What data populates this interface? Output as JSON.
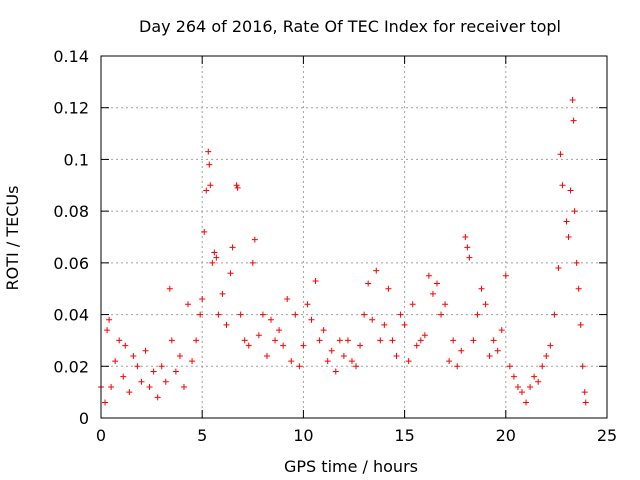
{
  "chart_data": {
    "type": "scatter",
    "title": "Day 264 of 2016, Rate Of TEC Index for receiver topl",
    "xlabel": "GPS time / hours",
    "ylabel": "ROTI / TECUs",
    "xlim": [
      0,
      25
    ],
    "ylim": [
      0,
      0.14
    ],
    "x_ticks": [
      0,
      5,
      10,
      15,
      20,
      25
    ],
    "x_tick_labels": [
      "0",
      "5",
      "10",
      "15",
      "20",
      "25"
    ],
    "y_ticks": [
      0,
      0.02,
      0.04,
      0.06,
      0.08,
      0.1,
      0.12,
      0.14
    ],
    "y_tick_labels": [
      "0",
      "0.02",
      "0.04",
      "0.06",
      "0.08",
      "0.1",
      "0.12",
      "0.14"
    ],
    "grid": true,
    "marker": "+",
    "series_color": "#ff0000",
    "series": [
      {
        "name": "ROTI",
        "points": [
          [
            0.0,
            0.012
          ],
          [
            0.2,
            0.006
          ],
          [
            0.3,
            0.034
          ],
          [
            0.4,
            0.038
          ],
          [
            0.5,
            0.012
          ],
          [
            0.7,
            0.022
          ],
          [
            0.9,
            0.03
          ],
          [
            1.1,
            0.016
          ],
          [
            1.2,
            0.028
          ],
          [
            1.4,
            0.01
          ],
          [
            1.6,
            0.024
          ],
          [
            1.8,
            0.02
          ],
          [
            2.0,
            0.014
          ],
          [
            2.2,
            0.026
          ],
          [
            2.4,
            0.012
          ],
          [
            2.6,
            0.018
          ],
          [
            2.8,
            0.008
          ],
          [
            3.0,
            0.02
          ],
          [
            3.2,
            0.014
          ],
          [
            3.4,
            0.05
          ],
          [
            3.5,
            0.03
          ],
          [
            3.7,
            0.018
          ],
          [
            3.9,
            0.024
          ],
          [
            4.1,
            0.012
          ],
          [
            4.3,
            0.044
          ],
          [
            4.5,
            0.022
          ],
          [
            4.7,
            0.03
          ],
          [
            4.9,
            0.04
          ],
          [
            5.0,
            0.046
          ],
          [
            5.1,
            0.072
          ],
          [
            5.2,
            0.088
          ],
          [
            5.3,
            0.103
          ],
          [
            5.35,
            0.098
          ],
          [
            5.4,
            0.09
          ],
          [
            5.5,
            0.06
          ],
          [
            5.6,
            0.064
          ],
          [
            5.7,
            0.062
          ],
          [
            5.8,
            0.04
          ],
          [
            6.0,
            0.048
          ],
          [
            6.2,
            0.036
          ],
          [
            6.4,
            0.056
          ],
          [
            6.5,
            0.066
          ],
          [
            6.7,
            0.09
          ],
          [
            6.75,
            0.089
          ],
          [
            6.9,
            0.04
          ],
          [
            7.1,
            0.03
          ],
          [
            7.3,
            0.028
          ],
          [
            7.5,
            0.06
          ],
          [
            7.6,
            0.069
          ],
          [
            7.8,
            0.032
          ],
          [
            8.0,
            0.04
          ],
          [
            8.2,
            0.024
          ],
          [
            8.4,
            0.038
          ],
          [
            8.6,
            0.03
          ],
          [
            8.8,
            0.034
          ],
          [
            9.0,
            0.028
          ],
          [
            9.2,
            0.046
          ],
          [
            9.4,
            0.022
          ],
          [
            9.6,
            0.04
          ],
          [
            9.8,
            0.02
          ],
          [
            10.0,
            0.028
          ],
          [
            10.2,
            0.044
          ],
          [
            10.4,
            0.038
          ],
          [
            10.6,
            0.053
          ],
          [
            10.8,
            0.03
          ],
          [
            11.0,
            0.034
          ],
          [
            11.2,
            0.022
          ],
          [
            11.4,
            0.026
          ],
          [
            11.6,
            0.018
          ],
          [
            11.8,
            0.03
          ],
          [
            12.0,
            0.024
          ],
          [
            12.2,
            0.03
          ],
          [
            12.4,
            0.022
          ],
          [
            12.6,
            0.02
          ],
          [
            12.8,
            0.028
          ],
          [
            13.0,
            0.04
          ],
          [
            13.2,
            0.052
          ],
          [
            13.4,
            0.038
          ],
          [
            13.6,
            0.057
          ],
          [
            13.8,
            0.03
          ],
          [
            14.0,
            0.036
          ],
          [
            14.2,
            0.05
          ],
          [
            14.4,
            0.03
          ],
          [
            14.6,
            0.024
          ],
          [
            14.8,
            0.04
          ],
          [
            15.0,
            0.036
          ],
          [
            15.2,
            0.022
          ],
          [
            15.4,
            0.044
          ],
          [
            15.6,
            0.028
          ],
          [
            15.8,
            0.03
          ],
          [
            16.0,
            0.032
          ],
          [
            16.2,
            0.055
          ],
          [
            16.4,
            0.048
          ],
          [
            16.6,
            0.052
          ],
          [
            16.8,
            0.04
          ],
          [
            17.0,
            0.044
          ],
          [
            17.2,
            0.022
          ],
          [
            17.4,
            0.03
          ],
          [
            17.6,
            0.02
          ],
          [
            17.8,
            0.026
          ],
          [
            18.0,
            0.07
          ],
          [
            18.1,
            0.066
          ],
          [
            18.2,
            0.062
          ],
          [
            18.4,
            0.03
          ],
          [
            18.6,
            0.04
          ],
          [
            18.8,
            0.05
          ],
          [
            19.0,
            0.044
          ],
          [
            19.2,
            0.024
          ],
          [
            19.4,
            0.03
          ],
          [
            19.6,
            0.026
          ],
          [
            19.8,
            0.034
          ],
          [
            20.0,
            0.055
          ],
          [
            20.2,
            0.02
          ],
          [
            20.4,
            0.016
          ],
          [
            20.6,
            0.012
          ],
          [
            20.8,
            0.01
          ],
          [
            21.0,
            0.006
          ],
          [
            21.2,
            0.012
          ],
          [
            21.4,
            0.016
          ],
          [
            21.6,
            0.014
          ],
          [
            21.8,
            0.02
          ],
          [
            22.0,
            0.024
          ],
          [
            22.2,
            0.028
          ],
          [
            22.4,
            0.04
          ],
          [
            22.6,
            0.058
          ],
          [
            22.7,
            0.102
          ],
          [
            22.8,
            0.09
          ],
          [
            23.0,
            0.076
          ],
          [
            23.1,
            0.07
          ],
          [
            23.2,
            0.088
          ],
          [
            23.3,
            0.123
          ],
          [
            23.35,
            0.115
          ],
          [
            23.4,
            0.08
          ],
          [
            23.5,
            0.06
          ],
          [
            23.6,
            0.05
          ],
          [
            23.7,
            0.036
          ],
          [
            23.8,
            0.02
          ],
          [
            23.9,
            0.01
          ],
          [
            23.95,
            0.006
          ]
        ]
      }
    ]
  }
}
